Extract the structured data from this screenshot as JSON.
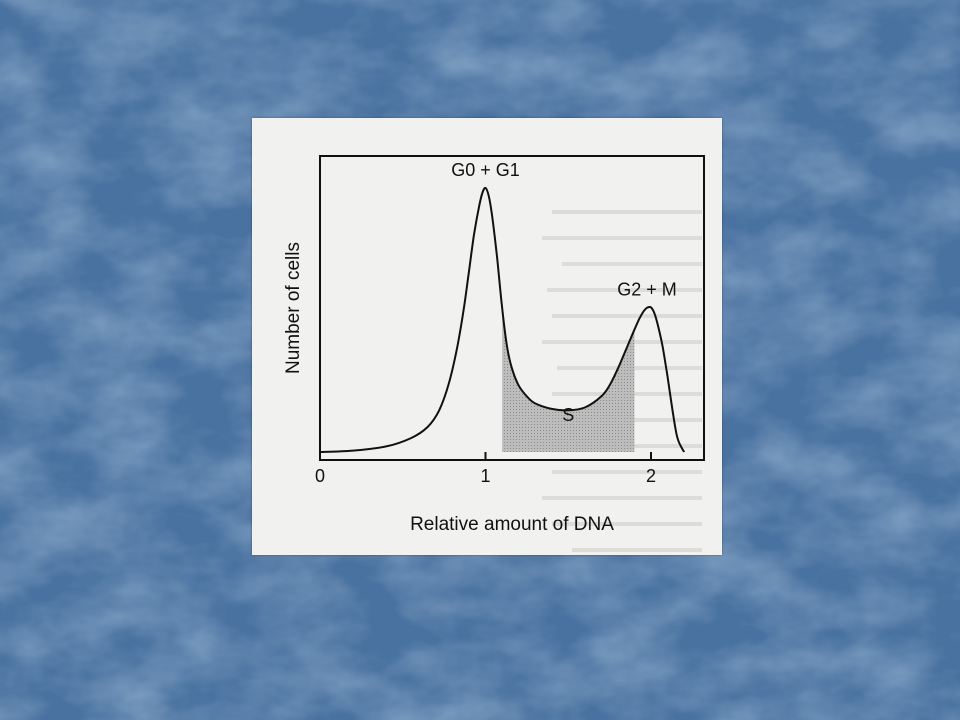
{
  "slide": {
    "background_color": "#4a72a0",
    "background_texture_color": "#5b83b0"
  },
  "chart_data": {
    "type": "line",
    "xlabel": "Relative amount of DNA",
    "ylabel": "Number of cells",
    "xlim": [
      0,
      2.4
    ],
    "ylim": [
      0,
      1.0
    ],
    "x_ticks": [
      {
        "value": 0,
        "label": "0"
      },
      {
        "value": 1,
        "label": "1"
      },
      {
        "value": 2,
        "label": "2"
      }
    ],
    "grid": false,
    "series": [
      {
        "x": [
          0,
          0.2,
          0.4,
          0.55,
          0.65,
          0.72,
          0.78,
          0.83,
          0.87,
          0.9,
          0.93,
          0.96,
          0.98,
          1.0,
          1.02,
          1.04,
          1.07,
          1.1,
          1.13,
          1.16,
          1.2,
          1.25,
          1.3,
          1.4,
          1.5,
          1.6,
          1.7,
          1.75,
          1.8,
          1.85,
          1.9,
          1.93,
          1.96,
          1.98,
          2.0,
          2.02,
          2.04,
          2.07,
          2.1,
          2.13,
          2.16,
          2.2
        ],
        "y": [
          0,
          0.005,
          0.02,
          0.05,
          0.09,
          0.15,
          0.25,
          0.38,
          0.52,
          0.65,
          0.78,
          0.88,
          0.93,
          0.95,
          0.92,
          0.85,
          0.7,
          0.52,
          0.38,
          0.3,
          0.24,
          0.2,
          0.175,
          0.155,
          0.15,
          0.16,
          0.2,
          0.24,
          0.3,
          0.37,
          0.44,
          0.48,
          0.51,
          0.52,
          0.52,
          0.5,
          0.46,
          0.38,
          0.27,
          0.15,
          0.05,
          0
        ]
      }
    ],
    "regions": [
      {
        "label": "S",
        "x_start": 1.1,
        "x_end": 1.9
      }
    ],
    "annotations": [
      {
        "text": "G0 + G1",
        "x": 1.0,
        "y": 0.95
      },
      {
        "text": "G2 + M",
        "x": 2.0,
        "y": 0.52
      },
      {
        "text": "S",
        "x": 1.5,
        "y": 0.15
      }
    ]
  }
}
